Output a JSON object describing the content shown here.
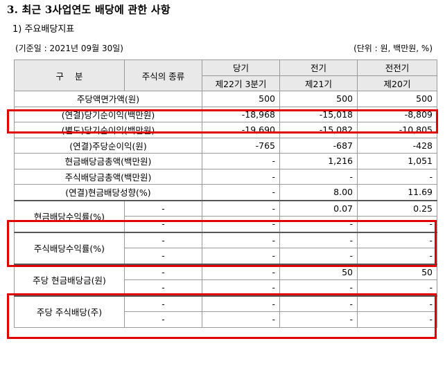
{
  "title": "3. 최근 3사업연도 배당에 관한 사항",
  "subtitle": "1) 주요배당지표",
  "base_date": "(기준일 : 2021년 09월 30일)",
  "unit": "(단위 : 원, 백만원, %)",
  "header": {
    "category": "구    분",
    "stock_type": "주식의 종류",
    "current": "당기",
    "current_sub": "제22기 3분기",
    "previous": "전기",
    "previous_sub": "제21기",
    "before_previous": "전전기",
    "before_previous_sub": "제20기"
  },
  "rows": [
    {
      "label": "주당액면가액(원)",
      "type": "",
      "cur": "500",
      "prev": "500",
      "prev2": "500"
    },
    {
      "label": "(연결)당기순이익(백만원)",
      "type": "",
      "cur": "-18,968",
      "prev": "-15,018",
      "prev2": "-8,809"
    },
    {
      "label": "(별도)당기순이익(백만원)",
      "type": "",
      "cur": "-19,690",
      "prev": "-15,082",
      "prev2": "-10,805"
    },
    {
      "label": "(연결)주당순이익(원)",
      "type": "",
      "cur": "-765",
      "prev": "-687",
      "prev2": "-428"
    },
    {
      "label": "현금배당금총액(백만원)",
      "type": "",
      "cur": "-",
      "prev": "1,216",
      "prev2": "1,051"
    },
    {
      "label": "주식배당금총액(백만원)",
      "type": "",
      "cur": "-",
      "prev": "-",
      "prev2": "-"
    },
    {
      "label": "(연결)현금배당성향(%)",
      "type": "",
      "cur": "-",
      "prev": "8.00",
      "prev2": "11.69"
    }
  ],
  "groups": [
    {
      "label": "현금배당수익률(%)",
      "rows": [
        {
          "type": "-",
          "cur": "-",
          "prev": "0.07",
          "prev2": "0.25"
        },
        {
          "type": "-",
          "cur": "-",
          "prev": "-",
          "prev2": "-"
        }
      ]
    },
    {
      "label": "주식배당수익률(%)",
      "rows": [
        {
          "type": "-",
          "cur": "-",
          "prev": "-",
          "prev2": "-"
        },
        {
          "type": "-",
          "cur": "-",
          "prev": "-",
          "prev2": "-"
        }
      ]
    },
    {
      "label": "주당 현금배당금(원)",
      "rows": [
        {
          "type": "-",
          "cur": "-",
          "prev": "50",
          "prev2": "50"
        },
        {
          "type": "-",
          "cur": "-",
          "prev": "-",
          "prev2": "-"
        }
      ]
    },
    {
      "label": "주당 주식배당(주)",
      "rows": [
        {
          "type": "-",
          "cur": "-",
          "prev": "-",
          "prev2": "-"
        },
        {
          "type": "-",
          "cur": "-",
          "prev": "-",
          "prev2": "-"
        }
      ]
    }
  ],
  "highlight_color": "#e00000"
}
